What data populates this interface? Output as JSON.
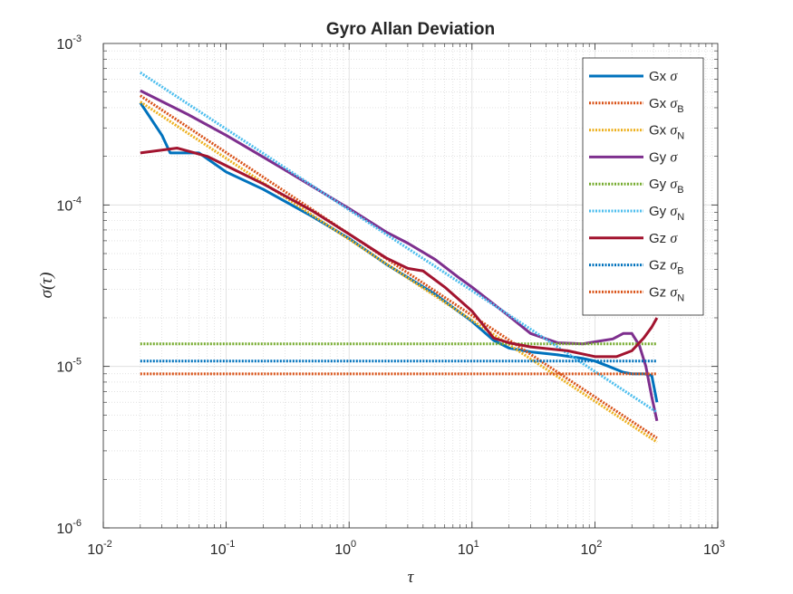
{
  "chart_data": {
    "type": "line",
    "title": "Gyro Allan Deviation",
    "xlabel": "τ",
    "ylabel": "σ(τ)",
    "xscale": "log",
    "yscale": "log",
    "xlim": [
      0.01,
      1000
    ],
    "ylim": [
      1e-06,
      0.001
    ],
    "grid": true,
    "minor_grid": true,
    "legend_position": "top-right",
    "x_ticks": [
      {
        "base": "10",
        "exp": "-2"
      },
      {
        "base": "10",
        "exp": "-1"
      },
      {
        "base": "10",
        "exp": "0"
      },
      {
        "base": "10",
        "exp": "1"
      },
      {
        "base": "10",
        "exp": "2"
      },
      {
        "base": "10",
        "exp": "3"
      }
    ],
    "y_ticks": [
      {
        "base": "10",
        "exp": "-6"
      },
      {
        "base": "10",
        "exp": "-5"
      },
      {
        "base": "10",
        "exp": "-4"
      },
      {
        "base": "10",
        "exp": "-3"
      }
    ],
    "series": [
      {
        "name": "Gx σ",
        "label": "Gx ",
        "sym": "σ",
        "sub": "",
        "color": "#0072BD",
        "style": "solid",
        "points": [
          [
            0.02,
            0.00043
          ],
          [
            0.03,
            0.00027
          ],
          [
            0.035,
            0.00021
          ],
          [
            0.06,
            0.00021
          ],
          [
            0.1,
            0.00016
          ],
          [
            0.2,
            0.000125
          ],
          [
            0.5,
            8.5e-05
          ],
          [
            1,
            6.2e-05
          ],
          [
            2,
            4.3e-05
          ],
          [
            5,
            2.8e-05
          ],
          [
            10,
            1.9e-05
          ],
          [
            15,
            1.45e-05
          ],
          [
            20,
            1.3e-05
          ],
          [
            30,
            1.23e-05
          ],
          [
            50,
            1.18e-05
          ],
          [
            80,
            1.12e-05
          ],
          [
            100,
            1.08e-05
          ],
          [
            130,
            1e-05
          ],
          [
            170,
            9.2e-06
          ],
          [
            200,
            9e-06
          ],
          [
            250,
            9e-06
          ],
          [
            290,
            8.8e-06
          ],
          [
            320,
            6e-06
          ]
        ]
      },
      {
        "name": "Gx σB",
        "label": "Gx ",
        "sym": "σ",
        "sub": "B",
        "color": "#D95319",
        "style": "dotted",
        "points": [
          [
            0.02,
            0.000475
          ],
          [
            320,
            3.6e-06
          ]
        ]
      },
      {
        "name": "Gx σN",
        "label": "Gx ",
        "sym": "σ",
        "sub": "N",
        "color": "#EDB120",
        "style": "dotted",
        "points": [
          [
            0.02,
            0.000435
          ],
          [
            320,
            3.4e-06
          ]
        ]
      },
      {
        "name": "Gy σ",
        "label": "Gy ",
        "sym": "σ",
        "sub": "",
        "color": "#7E2F8E",
        "style": "solid",
        "points": [
          [
            0.02,
            0.00051
          ],
          [
            0.05,
            0.00036
          ],
          [
            0.1,
            0.00027
          ],
          [
            0.3,
            0.000165
          ],
          [
            1,
            9.5e-05
          ],
          [
            2,
            6.8e-05
          ],
          [
            3,
            5.8e-05
          ],
          [
            5,
            4.6e-05
          ],
          [
            8,
            3.5e-05
          ],
          [
            10,
            3.1e-05
          ],
          [
            20,
            2.05e-05
          ],
          [
            30,
            1.6e-05
          ],
          [
            50,
            1.4e-05
          ],
          [
            80,
            1.38e-05
          ],
          [
            100,
            1.42e-05
          ],
          [
            140,
            1.48e-05
          ],
          [
            170,
            1.6e-05
          ],
          [
            200,
            1.6e-05
          ],
          [
            230,
            1.35e-05
          ],
          [
            260,
            1e-05
          ],
          [
            290,
            6.5e-06
          ],
          [
            320,
            4.6e-06
          ]
        ]
      },
      {
        "name": "Gy σB",
        "label": "Gy ",
        "sym": "σ",
        "sub": "B",
        "color": "#77AC30",
        "style": "dotted",
        "points": [
          [
            0.02,
            1.38e-05
          ],
          [
            320,
            1.38e-05
          ]
        ]
      },
      {
        "name": "Gy σN",
        "label": "Gy ",
        "sym": "σ",
        "sub": "N",
        "color": "#4DBEEE",
        "style": "dotted",
        "points": [
          [
            0.02,
            0.00066
          ],
          [
            320,
            5.2e-06
          ]
        ]
      },
      {
        "name": "Gz σ",
        "label": "Gz ",
        "sym": "σ",
        "sub": "",
        "color": "#A2142F",
        "style": "solid",
        "points": [
          [
            0.02,
            0.00021
          ],
          [
            0.04,
            0.000225
          ],
          [
            0.07,
            0.0002
          ],
          [
            0.1,
            0.000175
          ],
          [
            0.2,
            0.000135
          ],
          [
            0.5,
            9.2e-05
          ],
          [
            1,
            6.6e-05
          ],
          [
            2,
            4.7e-05
          ],
          [
            3,
            4.05e-05
          ],
          [
            4,
            3.9e-05
          ],
          [
            6,
            3.1e-05
          ],
          [
            10,
            2.2e-05
          ],
          [
            15,
            1.5e-05
          ],
          [
            20,
            1.4e-05
          ],
          [
            30,
            1.32e-05
          ],
          [
            60,
            1.25e-05
          ],
          [
            100,
            1.15e-05
          ],
          [
            150,
            1.15e-05
          ],
          [
            200,
            1.25e-05
          ],
          [
            250,
            1.5e-05
          ],
          [
            290,
            1.75e-05
          ],
          [
            320,
            2e-05
          ]
        ]
      },
      {
        "name": "Gz σB",
        "label": "Gz ",
        "sym": "σ",
        "sub": "B",
        "color": "#0072BD",
        "style": "dotted",
        "points": [
          [
            0.02,
            1.08e-05
          ],
          [
            320,
            1.08e-05
          ]
        ]
      },
      {
        "name": "Gz σN",
        "label": "Gz ",
        "sym": "σ",
        "sub": "N",
        "color": "#D95319",
        "style": "dotted",
        "points": [
          [
            0.02,
            9e-06
          ],
          [
            320,
            9e-06
          ]
        ]
      }
    ]
  }
}
